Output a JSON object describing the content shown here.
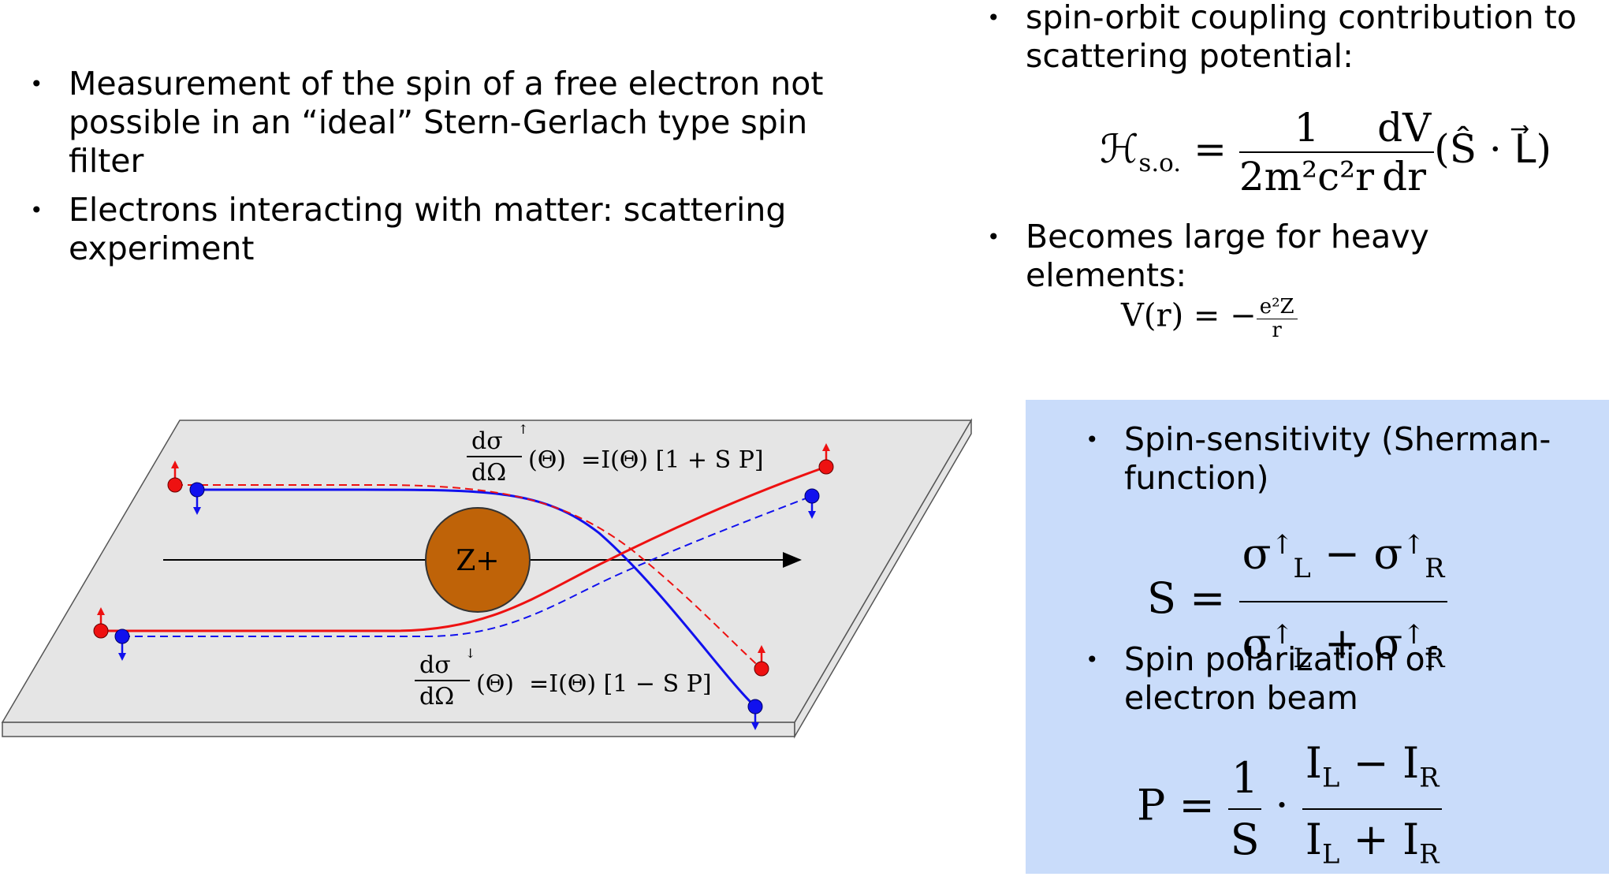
{
  "left_bullets": [
    "Measurement of the spin of a free electron not possible in an “ideal” Stern-Gerlach type spin filter",
    "Electrons interacting with matter: scattering experiment"
  ],
  "right_bullets": [
    "spin-orbit coupling contribution to scattering potential:",
    "Becomes large for heavy elements:"
  ],
  "box_bullets": [
    "Spin-sensitivity (Sherman-function)",
    "Spin polarization of electron beam"
  ],
  "equations": {
    "hso": {
      "lhs": "ℋ",
      "lhs_sub": "s.o.",
      "eq": " = ",
      "f1_num": "1",
      "f1_den": "2m²c²r",
      "f2_num": "dV",
      "f2_den": "dr",
      "tail": "(Ŝ · L⃗)"
    },
    "v": {
      "lhs": "V(r) = −",
      "num": "e²Z",
      "den": "r"
    },
    "s": {
      "lhs": "S = ",
      "num_a": "σ",
      "num_a_sup": "↑",
      "num_a_sub": "L",
      "num_op": " − ",
      "num_b": "σ",
      "num_b_sup": "↑",
      "num_b_sub": "R",
      "den_a": "σ",
      "den_a_sup": "↑",
      "den_a_sub": "L",
      "den_op": " + ",
      "den_b": "σ",
      "den_b_sup": "↑",
      "den_b_sub": "R"
    },
    "p": {
      "lhs": "P = ",
      "f1_num": "1",
      "f1_den": "S",
      "dot": " · ",
      "num_a": "I",
      "num_a_sub": "L",
      "num_op": " − ",
      "num_b": "I",
      "num_b_sub": "R",
      "den_a": "I",
      "den_a_sub": "L",
      "den_op": " + ",
      "den_b": "I",
      "den_b_sub": "R"
    }
  },
  "diagram": {
    "nucleus_label": "Z+",
    "top_formula": {
      "num": "dσ",
      "arrow": "↑",
      "den": "dΩ",
      "rhs": "(Θ)  =I(Θ) [1 + S P]"
    },
    "bottom_formula": {
      "num": "dσ",
      "arrow": "↓",
      "den": "dΩ",
      "rhs": "(Θ)  =I(Θ) [1 − S P]"
    },
    "colors": {
      "plate": "#e5e5e5",
      "nucleus": "#bf6308",
      "spin_up": "#ee1111",
      "spin_down": "#1111ee"
    }
  }
}
